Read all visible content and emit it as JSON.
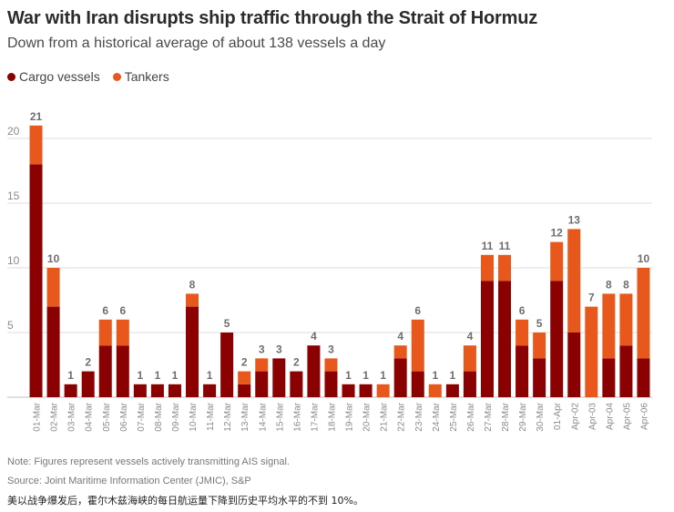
{
  "title": "War with Iran disrupts ship traffic through the Strait of Hormuz",
  "subtitle": "Down from a historical average of about 138 vessels a day",
  "legend": [
    {
      "label": "Cargo vessels",
      "color": "#8b0000"
    },
    {
      "label": "Tankers",
      "color": "#e8581c"
    }
  ],
  "notes": {
    "note": "Note: Figures represent vessels actively transmitting AIS signal.",
    "source": "Source: Joint Maritime Information Center (JMIC), S&P",
    "caption_zh": "美以战争爆发后，霍尔木兹海峡的每日航运量下降到历史平均水平的不到 10%。"
  },
  "colors": {
    "cargo": "#8b0000",
    "tankers": "#e8581c",
    "grid": "#dddddd",
    "axis_text": "#8a8a8a",
    "total_label": "#6e6e6e"
  },
  "chart_data": {
    "type": "bar",
    "stacked": true,
    "title": "War with Iran disrupts ship traffic through the Strait of Hormuz",
    "subtitle": "Down from a historical average of about 138 vessels a day",
    "xlabel": "",
    "ylabel": "",
    "ylim": [
      0,
      20
    ],
    "yticks": [
      5,
      10,
      15,
      20
    ],
    "grid": true,
    "legend_position": "top-left",
    "categories": [
      "01-Mar",
      "02-Mar",
      "03-Mar",
      "04-Mar",
      "05-Mar",
      "06-Mar",
      "07-Mar",
      "08-Mar",
      "09-Mar",
      "10-Mar",
      "11-Mar",
      "12-Mar",
      "13-Mar",
      "14-Mar",
      "15-Mar",
      "16-Mar",
      "17-Mar",
      "18-Mar",
      "19-Mar",
      "20-Mar",
      "21-Mar",
      "22-Mar",
      "23-Mar",
      "24-Mar",
      "25-Mar",
      "26-Mar",
      "27-Mar",
      "28-Mar",
      "29-Mar",
      "30-Mar",
      "01-Apr",
      "Apr-02",
      "Apr-03",
      "Apr-04",
      "Apr-05",
      "Apr-06"
    ],
    "series": [
      {
        "name": "Cargo vessels",
        "values": [
          18,
          7,
          1,
          2,
          4,
          4,
          1,
          1,
          1,
          7,
          1,
          5,
          1,
          2,
          3,
          2,
          4,
          2,
          1,
          1,
          0,
          3,
          2,
          0,
          1,
          2,
          9,
          9,
          4,
          3,
          9,
          5,
          0,
          3,
          4,
          3
        ]
      },
      {
        "name": "Tankers",
        "values": [
          3,
          3,
          0,
          0,
          2,
          2,
          0,
          0,
          0,
          1,
          0,
          0,
          1,
          1,
          0,
          0,
          0,
          1,
          0,
          0,
          1,
          1,
          4,
          1,
          0,
          2,
          2,
          2,
          2,
          2,
          3,
          8,
          7,
          5,
          4,
          7
        ]
      }
    ],
    "totals": [
      21,
      10,
      1,
      2,
      6,
      6,
      1,
      1,
      1,
      8,
      1,
      5,
      2,
      3,
      3,
      2,
      4,
      3,
      1,
      1,
      1,
      4,
      6,
      1,
      1,
      4,
      11,
      11,
      6,
      5,
      12,
      13,
      7,
      8,
      8,
      10
    ]
  }
}
